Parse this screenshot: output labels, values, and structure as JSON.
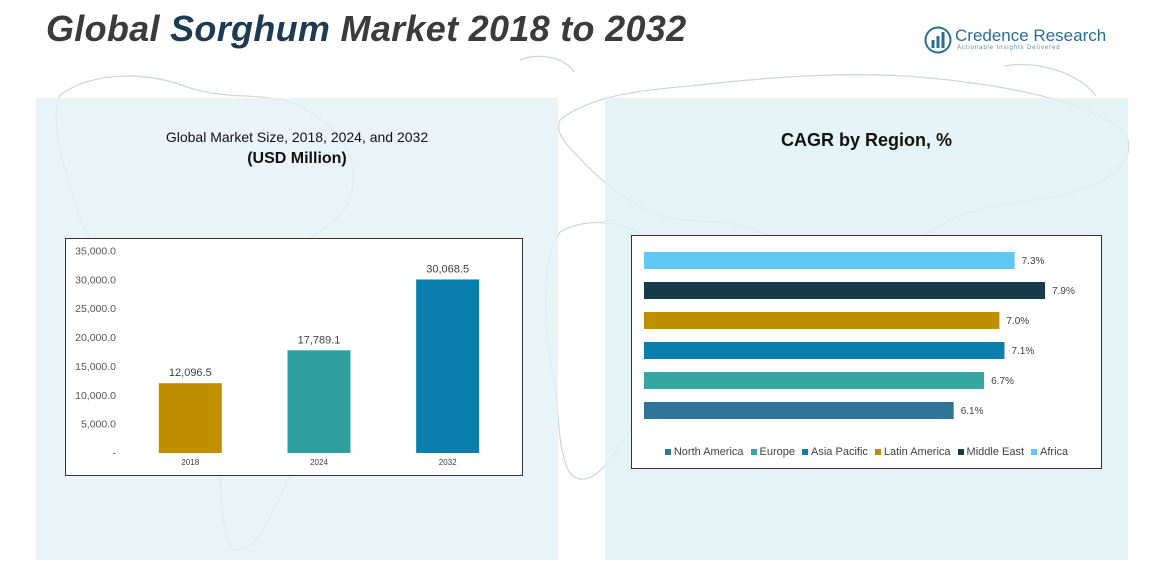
{
  "header": {
    "title_prefix": "Global",
    "title_accent": "Sorghum",
    "title_suffix": "Market 2018 to 2032"
  },
  "logo": {
    "name": "Credence Research",
    "tagline": "Actionable Insights Delivered",
    "icon": "bar-chart-circle-icon"
  },
  "chart_data": [
    {
      "type": "bar",
      "title": "Global Market Size, 2018, 2024, and 2032",
      "subtitle": "(USD Million)",
      "categories": [
        "2018",
        "2024",
        "2032"
      ],
      "values": [
        12096.5,
        17789.1,
        30068.5
      ],
      "data_labels": [
        "12,096.5",
        "17,789.1",
        "30,068.5"
      ],
      "colors": [
        "#bf8f00",
        "#2e9f9f",
        "#0a7fae"
      ],
      "ylim": [
        0,
        35000
      ],
      "yticks": [
        0,
        5000,
        10000,
        15000,
        20000,
        25000,
        30000,
        35000
      ],
      "ytick_labels": [
        "-",
        "5,000.0",
        "10,000.0",
        "15,000.0",
        "20,000.0",
        "25,000.0",
        "30,000.0",
        "35,000.0"
      ],
      "grid": false,
      "legend": "none"
    },
    {
      "type": "bar",
      "orientation": "horizontal",
      "title": "CAGR by Region, %",
      "categories": [
        "North America",
        "Europe",
        "Asia Pacific",
        "Latin America",
        "Middle East",
        "Africa"
      ],
      "values": [
        6.1,
        6.7,
        7.1,
        7.0,
        7.9,
        7.3
      ],
      "data_labels": [
        "6.1%",
        "6.7%",
        "7.1%",
        "7.0%",
        "7.9%",
        "7.3%"
      ],
      "colors": [
        "#2e7599",
        "#35a6a0",
        "#0a7fae",
        "#bf8f00",
        "#173b4b",
        "#5ec8f2"
      ],
      "xlim": [
        0,
        8.45
      ],
      "grid": false,
      "legend": "bottom"
    }
  ]
}
